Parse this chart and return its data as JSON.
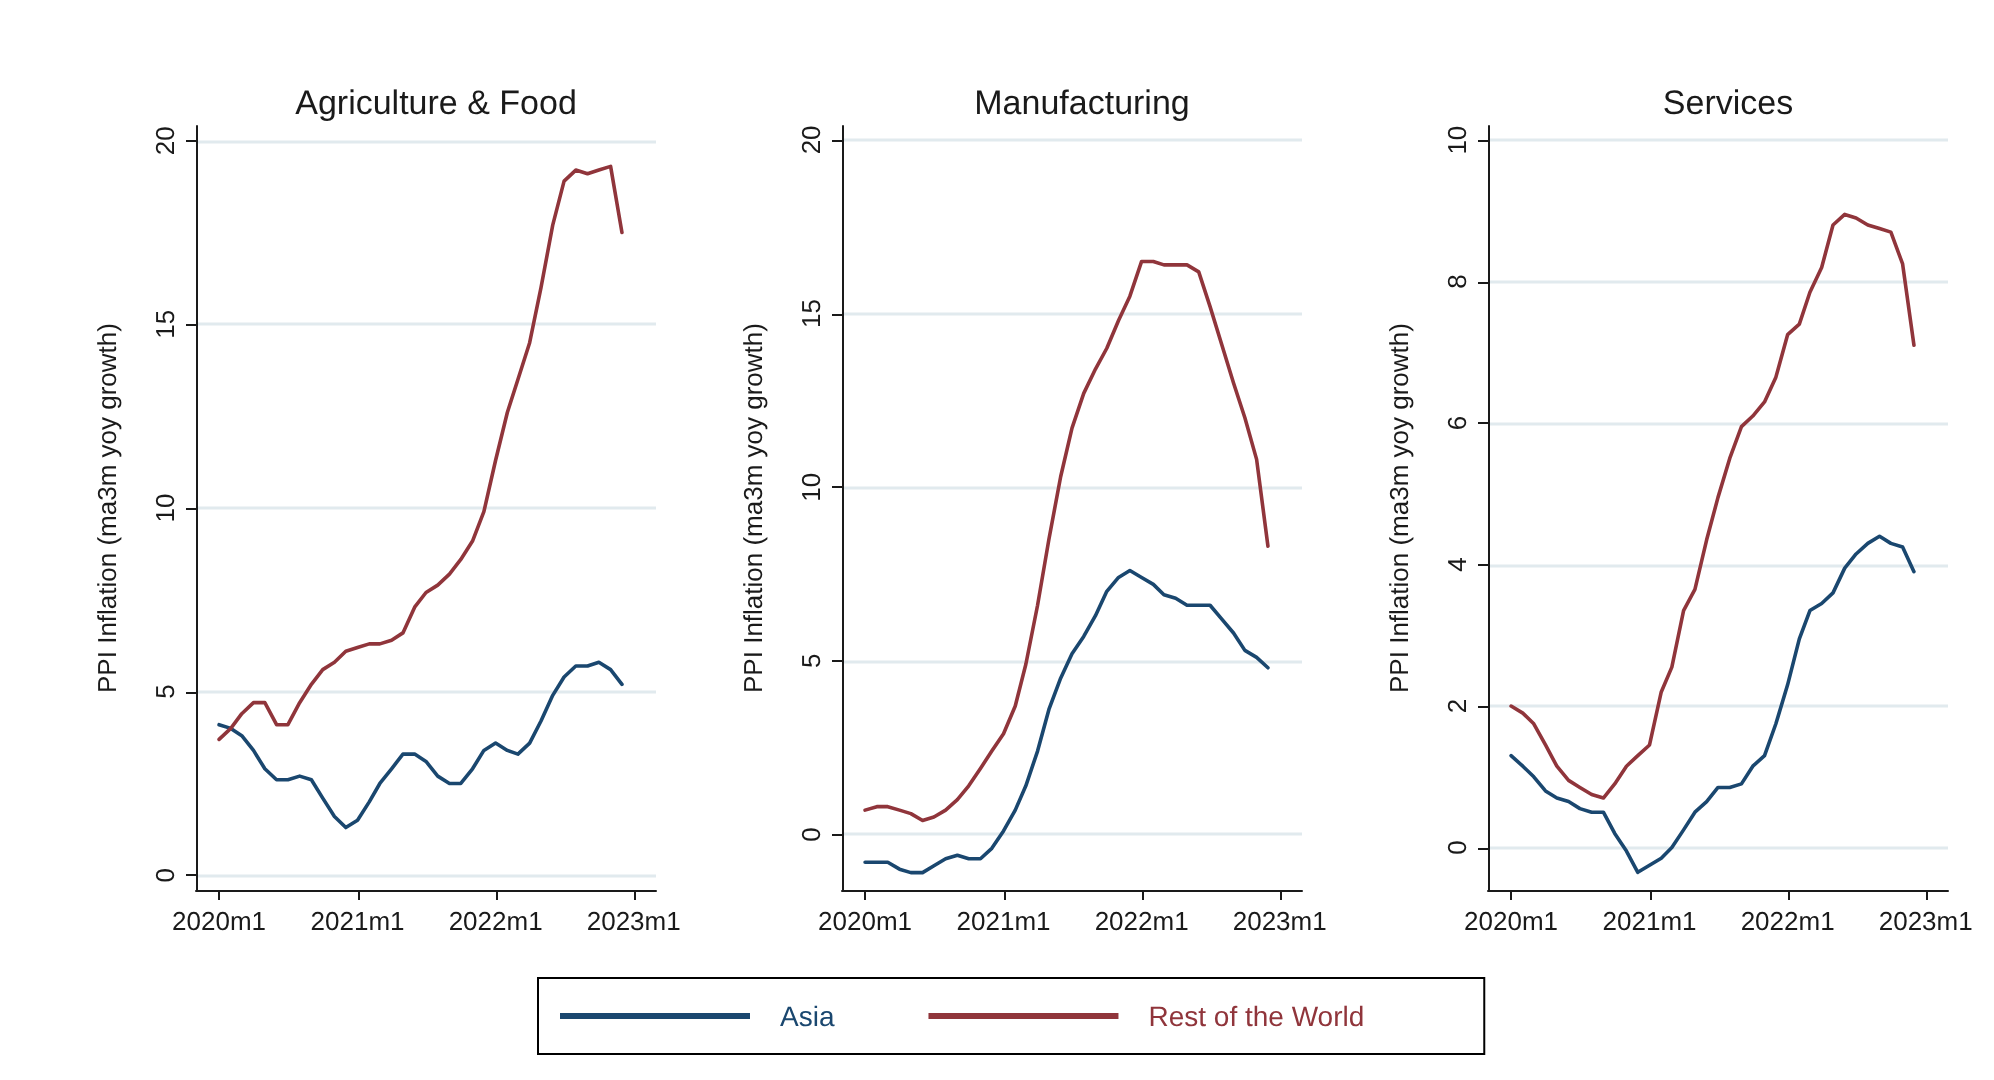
{
  "chart_data": [
    {
      "type": "line",
      "title": "Agriculture & Food",
      "ylabel": "PPI Inflation (ma3m yoy growth)",
      "x": [
        "2020-01",
        "2020-02",
        "2020-03",
        "2020-04",
        "2020-05",
        "2020-06",
        "2020-07",
        "2020-08",
        "2020-09",
        "2020-10",
        "2020-11",
        "2020-12",
        "2021-01",
        "2021-02",
        "2021-03",
        "2021-04",
        "2021-05",
        "2021-06",
        "2021-07",
        "2021-08",
        "2021-09",
        "2021-10",
        "2021-11",
        "2021-12",
        "2022-01",
        "2022-02",
        "2022-03",
        "2022-04",
        "2022-05",
        "2022-06",
        "2022-07",
        "2022-08",
        "2022-09",
        "2022-10",
        "2022-11",
        "2022-12"
      ],
      "xlim": [
        "2019-11",
        "2023-03"
      ],
      "xticks": [
        {
          "value": "2020-01",
          "label": "2020m1"
        },
        {
          "value": "2021-01",
          "label": "2021m1"
        },
        {
          "value": "2022-01",
          "label": "2022m1"
        },
        {
          "value": "2023-01",
          "label": "2023m1"
        }
      ],
      "ylim": [
        -0.4,
        20.4
      ],
      "yticks": [
        0,
        5,
        10,
        15,
        20
      ],
      "grid": "y",
      "series": [
        {
          "color": "#1a476f",
          "values": [
            4.1,
            4.0,
            3.8,
            3.4,
            2.9,
            2.6,
            2.6,
            2.7,
            2.6,
            2.1,
            1.6,
            1.3,
            1.5,
            2.0,
            2.5,
            2.9,
            3.3,
            3.3,
            3.1,
            2.7,
            2.5,
            2.5,
            2.9,
            3.4,
            3.6,
            3.4,
            3.3,
            3.6,
            4.2,
            4.9,
            5.4,
            5.7,
            5.7,
            5.8,
            5.6,
            5.2
          ]
        },
        {
          "color": "#90353b",
          "values": [
            3.7,
            4.0,
            4.4,
            4.7,
            4.7,
            4.1,
            4.1,
            4.7,
            5.2,
            5.6,
            5.8,
            6.1,
            6.2,
            6.3,
            6.3,
            6.4,
            6.6,
            7.3,
            7.7,
            7.9,
            8.2,
            8.6,
            9.1,
            9.9,
            11.3,
            12.6,
            13.5,
            14.5,
            16.0,
            17.7,
            18.9,
            19.2,
            19.1,
            19.2,
            19.3,
            17.5
          ]
        }
      ]
    },
    {
      "type": "line",
      "title": "Manufacturing",
      "ylabel": "PPI Inflation (ma3m yoy growth)",
      "x": [
        "2020-01",
        "2020-02",
        "2020-03",
        "2020-04",
        "2020-05",
        "2020-06",
        "2020-07",
        "2020-08",
        "2020-09",
        "2020-10",
        "2020-11",
        "2020-12",
        "2021-01",
        "2021-02",
        "2021-03",
        "2021-04",
        "2021-05",
        "2021-06",
        "2021-07",
        "2021-08",
        "2021-09",
        "2021-10",
        "2021-11",
        "2021-12",
        "2022-01",
        "2022-02",
        "2022-03",
        "2022-04",
        "2022-05",
        "2022-06",
        "2022-07",
        "2022-08",
        "2022-09",
        "2022-10",
        "2022-11",
        "2022-12"
      ],
      "xlim": [
        "2019-11",
        "2023-03"
      ],
      "xticks": [
        {
          "value": "2020-01",
          "label": "2020m1"
        },
        {
          "value": "2021-01",
          "label": "2021m1"
        },
        {
          "value": "2022-01",
          "label": "2022m1"
        },
        {
          "value": "2023-01",
          "label": "2023m1"
        }
      ],
      "ylim": [
        -1.6,
        20.4
      ],
      "yticks": [
        0,
        5,
        10,
        15,
        20
      ],
      "grid": "y",
      "legend": "bottom",
      "series": [
        {
          "name": "Asia",
          "color": "#1a476f",
          "values": [
            -0.8,
            -0.8,
            -0.8,
            -1.0,
            -1.1,
            -1.1,
            -0.9,
            -0.7,
            -0.6,
            -0.7,
            -0.7,
            -0.4,
            0.1,
            0.7,
            1.4,
            2.4,
            3.6,
            4.5,
            5.2,
            5.7,
            6.3,
            7.0,
            7.4,
            7.6,
            7.4,
            7.2,
            6.9,
            6.8,
            6.6,
            6.6,
            6.6,
            6.2,
            5.8,
            5.3,
            5.1,
            4.8
          ]
        },
        {
          "name": "Rest of the World",
          "color": "#90353b",
          "values": [
            0.7,
            0.8,
            0.8,
            0.7,
            0.6,
            0.4,
            0.5,
            0.7,
            1.0,
            1.4,
            1.9,
            2.4,
            2.9,
            3.7,
            4.9,
            6.6,
            8.5,
            10.3,
            11.7,
            12.7,
            13.4,
            14.0,
            14.8,
            15.5,
            16.5,
            16.5,
            16.4,
            16.4,
            16.4,
            16.2,
            15.2,
            14.1,
            13.0,
            12.0,
            10.8,
            8.3
          ]
        }
      ]
    },
    {
      "type": "line",
      "title": "Services",
      "ylabel": "PPI Inflation (ma3m yoy growth)",
      "x": [
        "2020-01",
        "2020-02",
        "2020-03",
        "2020-04",
        "2020-05",
        "2020-06",
        "2020-07",
        "2020-08",
        "2020-09",
        "2020-10",
        "2020-11",
        "2020-12",
        "2021-01",
        "2021-02",
        "2021-03",
        "2021-04",
        "2021-05",
        "2021-06",
        "2021-07",
        "2021-08",
        "2021-09",
        "2021-10",
        "2021-11",
        "2021-12",
        "2022-01",
        "2022-02",
        "2022-03",
        "2022-04",
        "2022-05",
        "2022-06",
        "2022-07",
        "2022-08",
        "2022-09",
        "2022-10",
        "2022-11",
        "2022-12"
      ],
      "xlim": [
        "2019-11",
        "2023-03"
      ],
      "xticks": [
        {
          "value": "2020-01",
          "label": "2020m1"
        },
        {
          "value": "2021-01",
          "label": "2021m1"
        },
        {
          "value": "2022-01",
          "label": "2022m1"
        },
        {
          "value": "2023-01",
          "label": "2023m1"
        }
      ],
      "ylim": [
        -0.6,
        10.2
      ],
      "yticks": [
        0,
        2,
        4,
        6,
        8,
        10
      ],
      "grid": "y",
      "series": [
        {
          "color": "#1a476f",
          "values": [
            1.3,
            1.15,
            1.0,
            0.8,
            0.7,
            0.65,
            0.55,
            0.5,
            0.5,
            0.2,
            -0.05,
            -0.35,
            -0.25,
            -0.15,
            0,
            0.25,
            0.5,
            0.65,
            0.85,
            0.85,
            0.9,
            1.15,
            1.3,
            1.75,
            2.3,
            2.95,
            3.35,
            3.45,
            3.6,
            3.95,
            4.15,
            4.3,
            4.4,
            4.3,
            4.25,
            3.9
          ]
        },
        {
          "color": "#90353b",
          "values": [
            2.0,
            1.9,
            1.75,
            1.45,
            1.15,
            0.95,
            0.85,
            0.75,
            0.7,
            0.9,
            1.15,
            1.3,
            1.45,
            2.2,
            2.55,
            3.35,
            3.65,
            4.35,
            4.95,
            5.5,
            5.95,
            6.1,
            6.3,
            6.65,
            7.25,
            7.4,
            7.85,
            8.2,
            8.8,
            8.95,
            8.9,
            8.8,
            8.75,
            8.7,
            8.25,
            7.1
          ]
        }
      ]
    }
  ]
}
